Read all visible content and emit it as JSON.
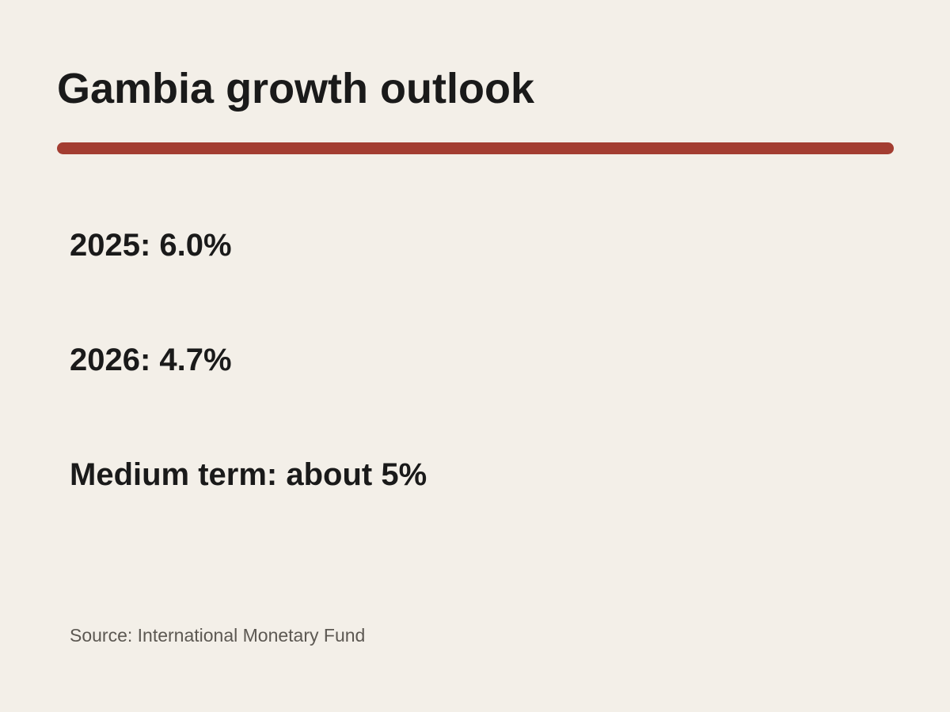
{
  "title": "Gambia growth outlook",
  "accent_color": "#a33d31",
  "stats": [
    {
      "text": "2025: 6.0%"
    },
    {
      "text": "2026: 4.7%"
    },
    {
      "text": "Medium term: about 5%"
    }
  ],
  "source": "Source: International Monetary Fund"
}
